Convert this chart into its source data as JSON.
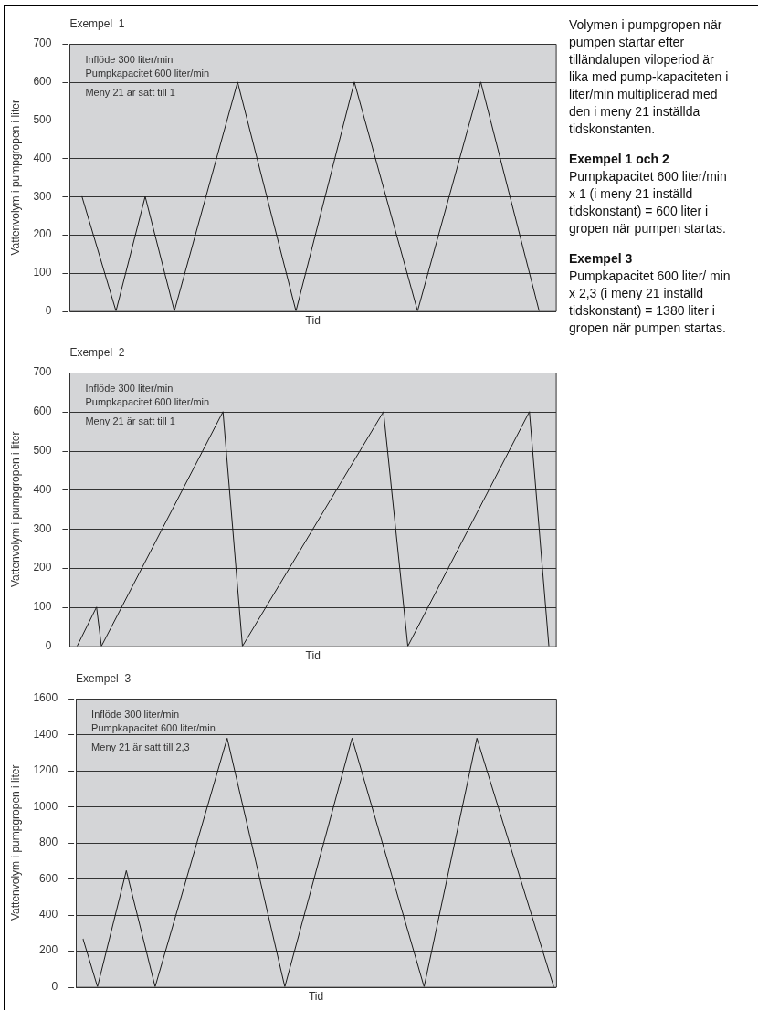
{
  "chart_data": [
    {
      "type": "line",
      "title": "Exempel  1",
      "xlabel": "Tid",
      "ylabel": "Vattenvolym i pumpgropen i liter",
      "annotations": [
        "Inflöde 300 liter/min",
        "Pumpkapacitet 600 liter/min",
        "Meny 21 är satt till 1"
      ],
      "categories": [
        null,
        null,
        null,
        null,
        null,
        null,
        null,
        null,
        null,
        null,
        null,
        null,
        null,
        null,
        null,
        null,
        null,
        null,
        null,
        null,
        null,
        null,
        null,
        null,
        null,
        null,
        null,
        null,
        null,
        null,
        null,
        null,
        null,
        null,
        null,
        null,
        null,
        null,
        null,
        null,
        null,
        null,
        null,
        null,
        null,
        null,
        null,
        null,
        null,
        null,
        null,
        null,
        null,
        null,
        null,
        null,
        null,
        null,
        null,
        null,
        null,
        null,
        null,
        null,
        null,
        null,
        null,
        null,
        null,
        null,
        null,
        null,
        null,
        null,
        null,
        null,
        null,
        null,
        null,
        null,
        null,
        null,
        null,
        null,
        null,
        null,
        null,
        null,
        null,
        null,
        null,
        null,
        null,
        null,
        null,
        null,
        null,
        null,
        null,
        null
      ],
      "ylim": [
        0,
        700
      ],
      "yticks": [
        0,
        100,
        200,
        300,
        400,
        500,
        600,
        700
      ],
      "tick_labels": "y",
      "grid": "y",
      "marker": "none",
      "line_style": "solid",
      "legend": false,
      "series": [
        {
          "color": "#1a1a1a",
          "values": [
            null,
            null,
            300,
            null,
            null,
            null,
            null,
            null,
            null,
            0,
            null,
            null,
            null,
            null,
            null,
            300,
            null,
            null,
            null,
            null,
            null,
            0,
            null,
            null,
            null,
            null,
            null,
            null,
            null,
            null,
            null,
            null,
            null,
            null,
            600,
            null,
            null,
            null,
            null,
            null,
            null,
            null,
            null,
            null,
            null,
            null,
            0,
            null,
            null,
            null,
            null,
            null,
            null,
            null,
            null,
            null,
            null,
            null,
            600,
            null,
            null,
            null,
            null,
            null,
            null,
            null,
            null,
            null,
            null,
            null,
            null,
            0,
            null,
            null,
            null,
            null,
            null,
            null,
            null,
            null,
            null,
            null,
            null,
            null,
            600,
            null,
            null,
            null,
            null,
            null,
            null,
            null,
            null,
            null,
            null,
            null,
            0,
            null,
            null,
            null
          ]
        }
      ]
    },
    {
      "type": "line",
      "title": "Exempel  2",
      "xlabel": "Tid",
      "ylabel": "Vattenvolym i pumpgropen i liter",
      "annotations": [
        "Inflöde 300 liter/min",
        "Pumpkapacitet 600 liter/min",
        "Meny 21 är satt till 1"
      ],
      "categories": [
        null,
        null,
        null,
        null,
        null,
        null,
        null,
        null,
        null,
        null,
        null,
        null,
        null,
        null,
        null,
        null,
        null,
        null,
        null,
        null,
        null,
        null,
        null,
        null,
        null,
        null,
        null,
        null,
        null,
        null,
        null,
        null,
        null,
        null,
        null,
        null,
        null,
        null,
        null,
        null,
        null,
        null,
        null,
        null,
        null,
        null,
        null,
        null,
        null,
        null,
        null,
        null,
        null,
        null,
        null,
        null,
        null,
        null,
        null,
        null,
        null,
        null,
        null,
        null,
        null,
        null,
        null,
        null,
        null,
        null,
        null,
        null,
        null,
        null,
        null,
        null,
        null,
        null,
        null,
        null,
        null,
        null,
        null,
        null,
        null,
        null,
        null,
        null,
        null,
        null,
        null,
        null,
        null,
        null,
        null,
        null,
        null,
        null,
        null,
        null
      ],
      "ylim": [
        0,
        700
      ],
      "yticks": [
        0,
        100,
        200,
        300,
        400,
        500,
        600,
        700
      ],
      "tick_labels": "y",
      "grid": "y",
      "marker": "none",
      "line_style": "solid",
      "legend": false,
      "series": [
        {
          "color": "#1a1a1a",
          "values": [
            null,
            0,
            null,
            null,
            null,
            100,
            0,
            null,
            null,
            null,
            null,
            null,
            null,
            null,
            null,
            null,
            null,
            null,
            null,
            null,
            null,
            null,
            null,
            null,
            null,
            null,
            null,
            null,
            null,
            null,
            null,
            600,
            null,
            null,
            null,
            0,
            null,
            null,
            null,
            null,
            null,
            null,
            null,
            null,
            null,
            null,
            null,
            null,
            null,
            null,
            null,
            null,
            null,
            null,
            null,
            null,
            null,
            null,
            null,
            null,
            null,
            null,
            null,
            null,
            600,
            null,
            null,
            null,
            null,
            0,
            null,
            null,
            null,
            null,
            null,
            null,
            null,
            null,
            null,
            null,
            null,
            null,
            null,
            null,
            null,
            null,
            null,
            null,
            null,
            null,
            null,
            null,
            null,
            null,
            600,
            null,
            null,
            null,
            0,
            null
          ]
        }
      ]
    },
    {
      "type": "line",
      "title": "Exempel  3",
      "xlabel": "Tid",
      "ylabel": "Vattenvolym i pumpgropen i liter",
      "annotations": [
        "Inflöde 300 liter/min",
        "Pumpkapacitet 600 liter/min",
        "Meny 21 är satt till 2,3"
      ],
      "categories": [
        null,
        null,
        null,
        null,
        null,
        null,
        null,
        null,
        null,
        null,
        null,
        null,
        null,
        null,
        null,
        null,
        null,
        null,
        null,
        null,
        null,
        null,
        null,
        null,
        null,
        null,
        null,
        null,
        null,
        null,
        null,
        null,
        null,
        null,
        null,
        null,
        null,
        null,
        null,
        null,
        null,
        null,
        null,
        null,
        null,
        null,
        null,
        null,
        null,
        null,
        null,
        null,
        null,
        null,
        null,
        null,
        null,
        null,
        null,
        null,
        null,
        null,
        null,
        null,
        null,
        null,
        null,
        null,
        null,
        null,
        null,
        null,
        null,
        null,
        null,
        null,
        null,
        null,
        null,
        null,
        null,
        null,
        null,
        null,
        null,
        null,
        null,
        null,
        null,
        null,
        null,
        null,
        null,
        null,
        null,
        null,
        null,
        null,
        null,
        null
      ],
      "ylim": [
        0,
        1600
      ],
      "yticks": [
        0,
        200,
        400,
        600,
        800,
        1000,
        1200,
        1400,
        1600
      ],
      "tick_labels": "y",
      "grid": "y",
      "marker": "none",
      "line_style": "solid",
      "legend": false,
      "series": [
        {
          "color": "#1a1a1a",
          "values": [
            null,
            265,
            null,
            null,
            0,
            null,
            null,
            null,
            null,
            null,
            645,
            null,
            null,
            null,
            null,
            null,
            0,
            null,
            null,
            null,
            null,
            null,
            null,
            null,
            null,
            null,
            null,
            null,
            null,
            null,
            null,
            1380,
            null,
            null,
            null,
            null,
            null,
            null,
            null,
            null,
            null,
            null,
            null,
            0,
            null,
            null,
            null,
            null,
            null,
            null,
            null,
            null,
            null,
            null,
            null,
            null,
            null,
            1380,
            null,
            null,
            null,
            null,
            null,
            null,
            null,
            null,
            null,
            null,
            null,
            null,
            null,
            null,
            0,
            null,
            null,
            null,
            null,
            null,
            null,
            null,
            null,
            null,
            null,
            1380,
            null,
            null,
            null,
            null,
            null,
            null,
            null,
            null,
            null,
            null,
            null,
            null,
            null,
            null,
            null,
            0
          ]
        }
      ]
    },
    {
      "type": "other",
      "annotations": [
        "Volymen i pumpgropen när pumpen startar efter tilländalupen viloperiod är lika med pump-kapaciteten i liter/min multiplicerad med den i meny 21 inställda tidskonstanten.",
        "Exempel 1 och 2",
        "Pumpkapacitet 600 liter/min x 1 (i meny 21 inställd tidskonstant) = 600 liter i gropen när pumpen startas.",
        "Exempel 3",
        "Pumpkapacitet 600 liter/ min x 2,3 (i meny 21 inställd tidskonstant) = 1380 liter i gropen när pumpen startas."
      ]
    }
  ]
}
